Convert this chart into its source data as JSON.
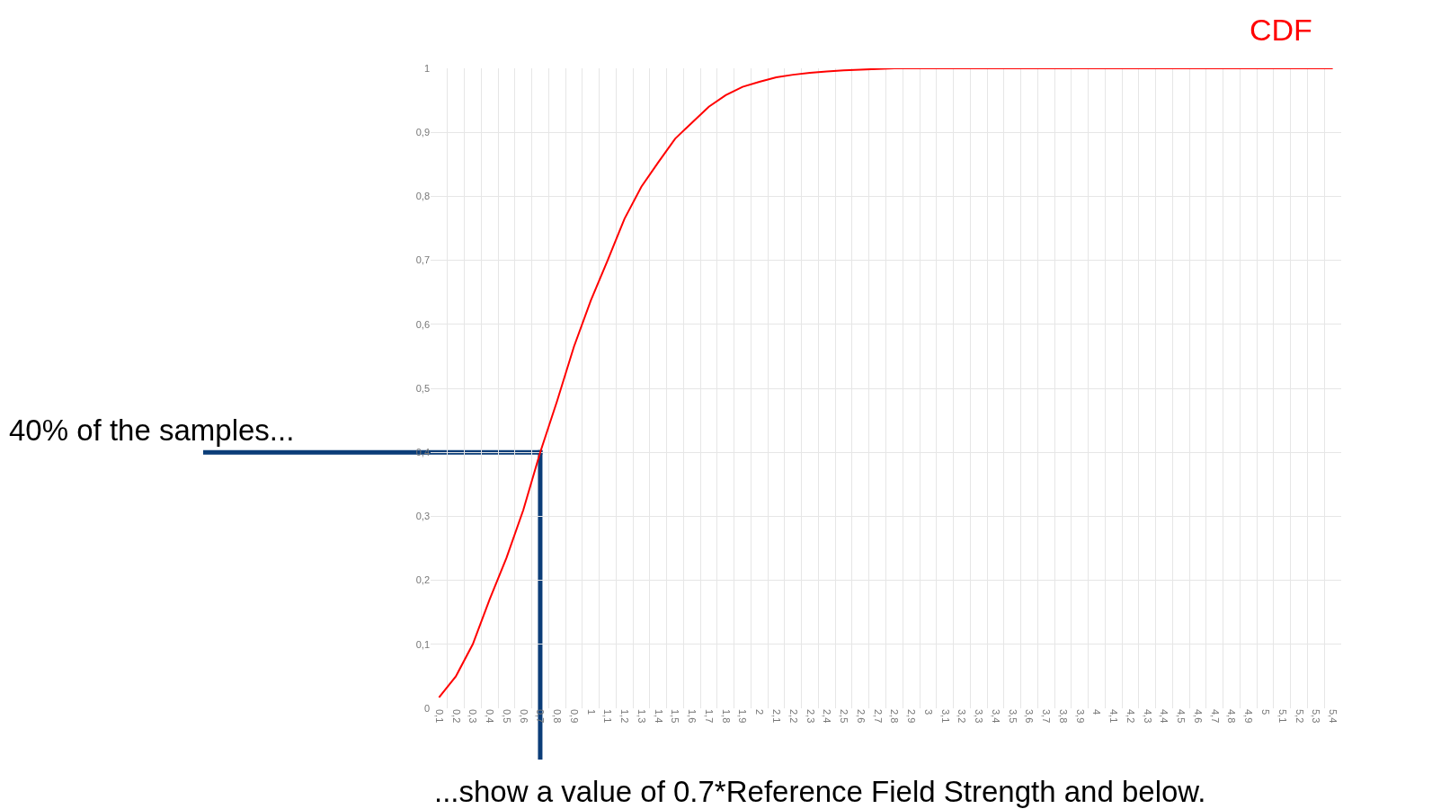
{
  "chart_data": {
    "type": "line",
    "categories": [
      "0,1",
      "0,2",
      "0,3",
      "0,4",
      "0,5",
      "0,6",
      "0,7",
      "0,8",
      "0,9",
      "1",
      "1,1",
      "1,2",
      "1,3",
      "1,4",
      "1,5",
      "1,6",
      "1,7",
      "1,8",
      "1,9",
      "2",
      "2,1",
      "2,2",
      "2,3",
      "2,4",
      "2,5",
      "2,6",
      "2,7",
      "2,8",
      "2,9",
      "3",
      "3,1",
      "3,2",
      "3,3",
      "3,4",
      "3,5",
      "3,6",
      "3,7",
      "3,8",
      "3,9",
      "4",
      "4,1",
      "4,2",
      "4,3",
      "4,4",
      "4,5",
      "4,6",
      "4,7",
      "4,8",
      "4,9",
      "5",
      "5,1",
      "5,2",
      "5,3",
      "5,4"
    ],
    "series": [
      {
        "name": "CDF",
        "color": "#ff0000",
        "values": [
          0.017,
          0.05,
          0.1,
          0.17,
          0.235,
          0.31,
          0.4,
          0.48,
          0.565,
          0.637,
          0.7,
          0.765,
          0.815,
          0.853,
          0.89,
          0.915,
          0.94,
          0.958,
          0.971,
          0.979,
          0.986,
          0.99,
          0.993,
          0.995,
          0.997,
          0.998,
          0.999,
          1,
          1,
          1,
          1,
          1,
          1,
          1,
          1,
          1,
          1,
          1,
          1,
          1,
          1,
          1,
          1,
          1,
          1,
          1,
          1,
          1,
          1,
          1,
          1,
          1,
          1,
          1
        ]
      }
    ],
    "ylim": [
      0,
      1
    ],
    "yticks": [
      0,
      {
        "value": 0.1,
        "label": "0,1"
      },
      {
        "value": 0.2,
        "label": "0,2"
      },
      {
        "value": 0.3,
        "label": "0,3"
      },
      {
        "value": 0.4,
        "label": "0,4"
      },
      {
        "value": 0.5,
        "label": "0,5"
      },
      {
        "value": 0.6,
        "label": "0,6"
      },
      {
        "value": 0.7,
        "label": "0,7"
      },
      {
        "value": 0.8,
        "label": "0,8"
      },
      {
        "value": 0.9,
        "label": "0,9"
      },
      1
    ],
    "grid": true,
    "legend": "top right",
    "marker": "none",
    "line_style": "solid",
    "ref_lines": [
      {
        "axis": "y",
        "value": 0.4,
        "color": "#0b3d78"
      },
      {
        "axis": "x",
        "value": "0,7",
        "color": "#0b3d78"
      }
    ],
    "annotations": [
      "40% of the samples...",
      "...show a value of 0.7*Reference Field Strength and below."
    ]
  }
}
